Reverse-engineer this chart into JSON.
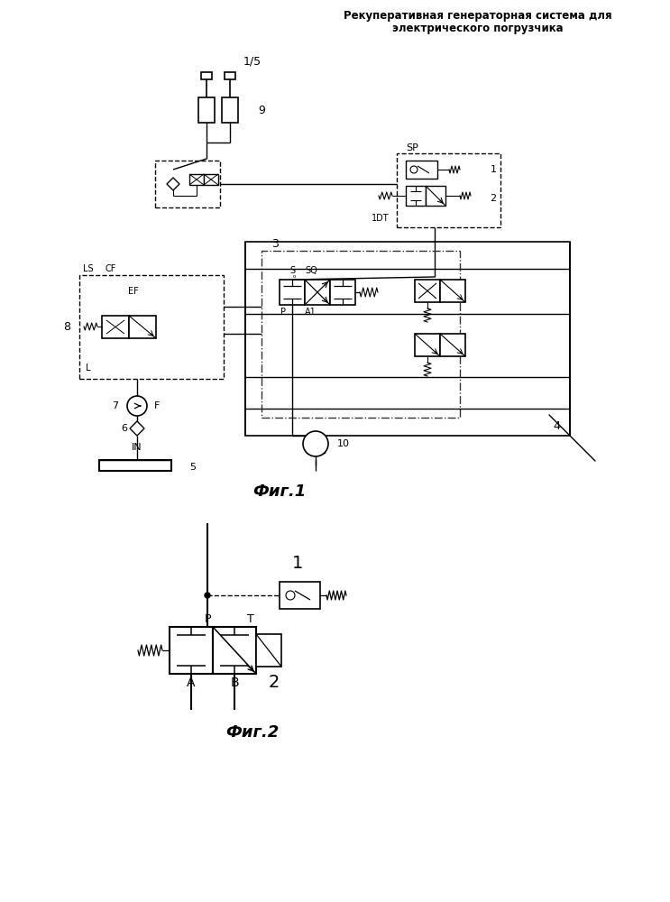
{
  "title_line1": "Рекуперативная генераторная система для",
  "title_line2": "электрического погрузчика",
  "page_num": "1/5",
  "fig1_label": "Фиг.1",
  "fig2_label": "Фиг.2",
  "bg_color": "#ffffff",
  "line_color": "#000000"
}
